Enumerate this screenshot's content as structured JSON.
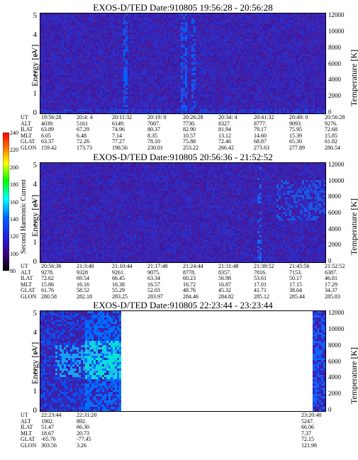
{
  "colorbar": {
    "label": "Second Harmonic Current",
    "ticks": [
      "240",
      "220",
      "200",
      "180",
      "160",
      "140",
      "120",
      "100",
      "80"
    ]
  },
  "chart_data": [
    {
      "type": "heatmap",
      "title": "EXOS-D/TED   Date:910805   19:56:28 - 20:56:28",
      "ylabel": "Energy [eV]",
      "y2label": "Temperature [K]",
      "ylim": [
        0,
        5
      ],
      "y2lim": [
        0,
        12000
      ],
      "yticks": [
        "0",
        "1",
        "2",
        "3",
        "4",
        "5"
      ],
      "y2ticks": [
        "0",
        "2000",
        "4000",
        "6000",
        "8000",
        "10000",
        "12000"
      ],
      "ephemeris_labels": [
        "UT",
        "ALT",
        "ILAT",
        "MLT",
        "GLAT",
        "GLON"
      ],
      "ephemeris": [
        [
          "19:56:28",
          "4039.",
          "63.89",
          "6.05",
          "63.37",
          "159.42"
        ],
        [
          "20:4: 4",
          "5161",
          "67.29",
          "6.48",
          "72.26",
          "173.73"
        ],
        [
          "20:11:32",
          "6149.",
          "74.96",
          "7.14",
          "77.27",
          "198.56"
        ],
        [
          "20:19: 0",
          "7007.",
          "80.37",
          "8.35",
          "78.10",
          "230.01"
        ],
        [
          "20:26:28",
          "7730.",
          "82.90",
          "10.57",
          "75.88",
          "253.22"
        ],
        [
          "20:34: 4",
          "8327.",
          "81.94",
          "13.12",
          "72.46",
          "266.42"
        ],
        [
          "20:41:32",
          "8777.",
          "79.17",
          "14.60",
          "68.87",
          "273.63"
        ],
        [
          "20:49: 0",
          "9093.",
          "75.95",
          "15.39",
          "65.30",
          "277.89"
        ],
        [
          "20:56:28",
          "9276.",
          "72.68",
          "15.85",
          "61.82",
          "280.54"
        ]
      ]
    },
    {
      "type": "heatmap",
      "title": "EXOS-D/TED   Date:910805   20:56:36 - 21:52:52",
      "ylabel": "Energy [eV]",
      "y2label": "Temperature [K]",
      "ylim": [
        0,
        5
      ],
      "y2lim": [
        0,
        12000
      ],
      "yticks": [
        "0",
        "1",
        "2",
        "3",
        "4",
        "5"
      ],
      "y2ticks": [
        "0",
        "2000",
        "4000",
        "6000",
        "8000",
        "10000",
        "12000"
      ],
      "ephemeris_labels": [
        "UT",
        "ALT",
        "ILAT",
        "MLT",
        "GLAT",
        "GLON"
      ],
      "ephemeris": [
        [
          "20:56:36",
          "9278.",
          "72.62",
          "15.86",
          "61.76",
          "280.58"
        ],
        [
          "21:3:40",
          "9328",
          "69.54",
          "16.16",
          "58.52",
          "282.18"
        ],
        [
          "21:10:44",
          "9261.",
          "66.45",
          "16.38",
          "55.29",
          "283.25"
        ],
        [
          "21:17:48",
          "9075.",
          "63.34",
          "16.57",
          "52.03",
          "283.97"
        ],
        [
          "21:24:44",
          "8778.",
          "60.23",
          "16.72",
          "48.76",
          "284.46"
        ],
        [
          "21:31:48",
          "8357.",
          "56.98",
          "16.87",
          "45.32",
          "284.82"
        ],
        [
          "21:38:52",
          "7816.",
          "53.61",
          "17.01",
          "41.71",
          "285.12"
        ],
        [
          "21:45:56",
          "7153.",
          "50.17",
          "17.15",
          "38.04",
          "285.44"
        ],
        [
          "21:52:52",
          "6387.",
          "46.81",
          "17.29",
          "34.37",
          "285.83"
        ]
      ]
    },
    {
      "type": "heatmap",
      "title": "EXOS-D/TED   Date:910805   22:23:44 - 23:23:44",
      "ylabel": "Energy [eV]",
      "y2label": "Temperature [K]",
      "ylim": [
        0,
        5
      ],
      "y2lim": [
        0,
        12000
      ],
      "yticks": [
        "0",
        "1",
        "2",
        "3",
        "4",
        "5"
      ],
      "y2ticks": [
        "0",
        "2000",
        "4000",
        "6000",
        "8000",
        "10000",
        "12000"
      ],
      "ephemeris_labels": [
        "UT",
        "ALT",
        "ILAT",
        "MLT",
        "GLAT",
        "GLON"
      ],
      "ephemeris": [
        [
          "22:23:44",
          "1902.",
          "51.47",
          "18.67",
          "-65.76",
          "303.56"
        ],
        [
          "22:31:20",
          "892.",
          "66.30",
          "20.73",
          "-77.45",
          "3.26"
        ],
        [
          "23:20:40",
          "5247.",
          "66.06",
          "7.37",
          "72.15",
          "121.98"
        ]
      ]
    }
  ]
}
